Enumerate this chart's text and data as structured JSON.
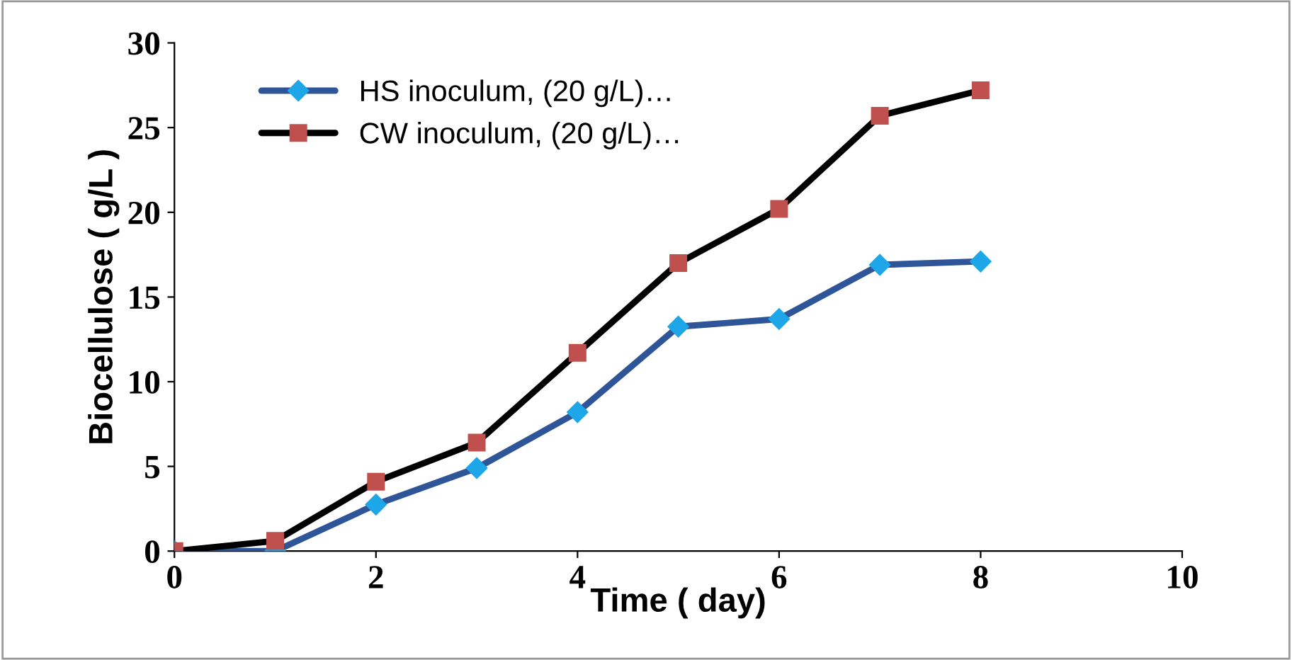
{
  "chart_data": {
    "type": "line",
    "xlabel": "Time ( day)",
    "ylabel": "Biocellulose ( g/L )",
    "x": [
      0,
      1,
      2,
      3,
      4,
      5,
      6,
      7,
      8
    ],
    "xlim": [
      0,
      10
    ],
    "xticks": [
      0,
      2,
      4,
      6,
      8,
      10
    ],
    "ylim": [
      0,
      30
    ],
    "yticks": [
      0,
      5,
      10,
      15,
      20,
      25,
      30
    ],
    "grid": false,
    "legend": "top left",
    "line_style": "solid",
    "series": [
      {
        "name": "HS inoculum, (20 g/L)…",
        "color": "#1ea7e8",
        "marker": "diamond",
        "values": [
          0,
          0,
          2.75,
          4.9,
          8.2,
          13.25,
          13.7,
          16.9,
          17.1
        ]
      },
      {
        "name": "CW inoculum, (20 g/L)…",
        "color": "#c0504d",
        "marker": "square",
        "values": [
          0,
          0.6,
          4.1,
          6.4,
          11.7,
          17,
          20.2,
          25.7,
          27.2
        ]
      }
    ]
  }
}
